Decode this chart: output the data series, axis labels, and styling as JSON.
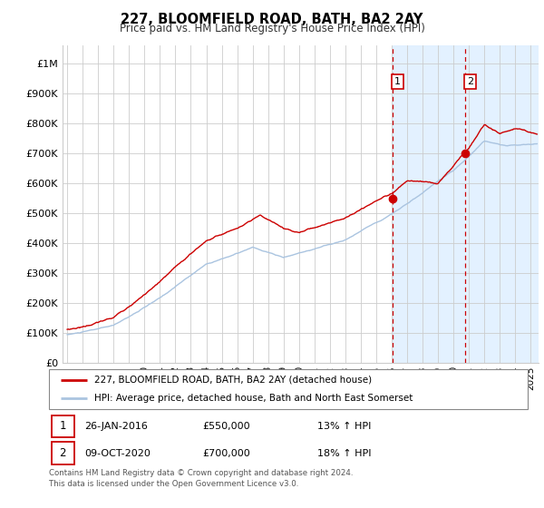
{
  "title": "227, BLOOMFIELD ROAD, BATH, BA2 2AY",
  "subtitle": "Price paid vs. HM Land Registry's House Price Index (HPI)",
  "ylabel_ticks": [
    "£0",
    "£100K",
    "£200K",
    "£300K",
    "£400K",
    "£500K",
    "£600K",
    "£700K",
    "£800K",
    "£900K",
    "£1M"
  ],
  "ytick_values": [
    0,
    100000,
    200000,
    300000,
    400000,
    500000,
    600000,
    700000,
    800000,
    900000,
    1000000
  ],
  "ylim": [
    0,
    1060000
  ],
  "xlim_start": 1994.7,
  "xlim_end": 2025.5,
  "marker1_x": 2016.07,
  "marker2_x": 2020.77,
  "legend_line1": "227, BLOOMFIELD ROAD, BATH, BA2 2AY (detached house)",
  "legend_line2": "HPI: Average price, detached house, Bath and North East Somerset",
  "note1_date": "26-JAN-2016",
  "note1_price": "£550,000",
  "note1_hpi": "13% ↑ HPI",
  "note2_date": "09-OCT-2020",
  "note2_price": "£700,000",
  "note2_hpi": "18% ↑ HPI",
  "footer": "Contains HM Land Registry data © Crown copyright and database right 2024.\nThis data is licensed under the Open Government Licence v3.0.",
  "hpi_color": "#aac4e0",
  "price_color": "#cc0000",
  "shading_color": "#ddeeff",
  "grid_color": "#cccccc",
  "background_color": "#ffffff"
}
